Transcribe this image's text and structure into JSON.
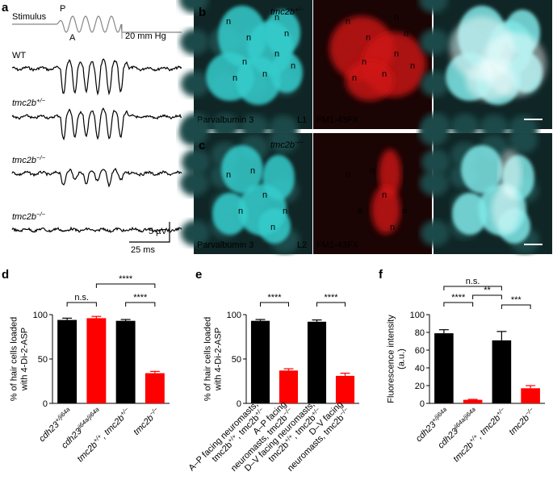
{
  "panel_a": {
    "label": "a",
    "stimulus": "Stimulus",
    "peak": "P",
    "antipeak": "A",
    "pressure_scale": "20 mm Hg",
    "traces": [
      [
        "WT"
      ],
      [
        "tmc2b",
        {
          "sup": "+/−"
        }
      ],
      [
        "tmc2b",
        {
          "sup": "−/−"
        }
      ],
      [
        "tmc2b",
        {
          "sup": "−/−"
        }
      ]
    ],
    "voltage_scale": "5 µV",
    "time_scale": "25 ms"
  },
  "panel_b": {
    "label": "b",
    "genotype": [
      "tmc2b",
      {
        "sup": "+/−"
      }
    ],
    "stain": "Parvalbumin 3",
    "line": "L1",
    "dye": "FM1-43FX",
    "nucleus": "n"
  },
  "panel_c": {
    "label": "c",
    "genotype": [
      "tmc2b",
      {
        "sup": "−/−"
      }
    ],
    "stain": "Parvalbumin 3",
    "line": "L2",
    "dye": "FM1-43FX",
    "nucleus": "n"
  },
  "chart_data": [
    {
      "type": "bar",
      "panel": "d",
      "ylabel": [
        "% of hair cells loaded",
        "with 4-Di-2-ASP"
      ],
      "categories": [
        [
          [
            "cdh23",
            {
              "sup": "+/ji64a"
            }
          ]
        ],
        [
          [
            "cdh23",
            {
              "sup": "ji64a/ji64a"
            }
          ]
        ],
        [
          [
            "tmc2b",
            {
              "sup": "+/+"
            },
            ", tmc2b",
            {
              "sup": "+/−"
            }
          ]
        ],
        [
          [
            "tmc2b",
            {
              "sup": "−/−"
            }
          ]
        ]
      ],
      "values": [
        94,
        96,
        93,
        34
      ],
      "errors": [
        2,
        2,
        1.5,
        2
      ],
      "colors": [
        "#000000",
        "#ff0000",
        "#000000",
        "#ff0000"
      ],
      "ylim": [
        0,
        100
      ],
      "yticks": [
        0,
        50,
        100
      ],
      "brackets": [
        {
          "label": "n.s.",
          "from": 0,
          "to": 1
        },
        {
          "label": "****",
          "from": 1,
          "to": 3
        },
        {
          "label": "****",
          "from": 2,
          "to": 3
        }
      ]
    },
    {
      "type": "bar",
      "panel": "e",
      "ylabel": [
        "% of hair cells loaded",
        "with 4-Di-2-ASP"
      ],
      "categories": [
        [
          [
            "A–P facing neuromasts,"
          ],
          [
            "tmc2b",
            {
              "sup": "+/+"
            },
            ", tmc2b",
            {
              "sup": "+/−"
            }
          ]
        ],
        [
          [
            "A–P facing"
          ],
          [
            "neuromasts, tmc2b",
            {
              "sup": "−/−"
            }
          ]
        ],
        [
          [
            "D–V facing neuromasts,"
          ],
          [
            "tmc2b",
            {
              "sup": "+/+"
            },
            ", tmc2b",
            {
              "sup": "+/−"
            }
          ]
        ],
        [
          [
            "D–V facing"
          ],
          [
            "neuromasts, tmc2b",
            {
              "sup": "−/−"
            }
          ]
        ]
      ],
      "values": [
        93,
        37,
        92,
        31
      ],
      "errors": [
        1.5,
        2,
        2,
        3
      ],
      "colors": [
        "#000000",
        "#ff0000",
        "#000000",
        "#ff0000"
      ],
      "ylim": [
        0,
        100
      ],
      "yticks": [
        0,
        50,
        100
      ],
      "brackets": [
        {
          "label": "****",
          "from": 0,
          "to": 1
        },
        {
          "label": "****",
          "from": 2,
          "to": 3
        }
      ]
    },
    {
      "type": "bar",
      "panel": "f",
      "ylabel": [
        "Fluorescence intensity",
        "(a.u.)"
      ],
      "categories": [
        [
          [
            "cdh23",
            {
              "sup": "+/ji64a"
            }
          ]
        ],
        [
          [
            "cdh23",
            {
              "sup": "ji64a/ji64a"
            }
          ]
        ],
        [
          [
            "tmc2b",
            {
              "sup": "+/+"
            },
            ", tmc2b",
            {
              "sup": "+/−"
            }
          ]
        ],
        [
          [
            "tmc2b",
            {
              "sup": "−/−"
            }
          ]
        ]
      ],
      "values": [
        79,
        4,
        71,
        17
      ],
      "errors": [
        4,
        0.5,
        10,
        3
      ],
      "colors": [
        "#000000",
        "#ff0000",
        "#000000",
        "#ff0000"
      ],
      "ylim": [
        0,
        100
      ],
      "yticks": [
        0,
        20,
        40,
        60,
        80,
        100
      ],
      "brackets": [
        {
          "label": "n.s.",
          "from": 0,
          "to": 2
        },
        {
          "label": "****",
          "from": 0,
          "to": 1
        },
        {
          "label": "**",
          "from": 1,
          "to": 2
        },
        {
          "label": "***",
          "from": 2,
          "to": 3
        }
      ]
    }
  ]
}
